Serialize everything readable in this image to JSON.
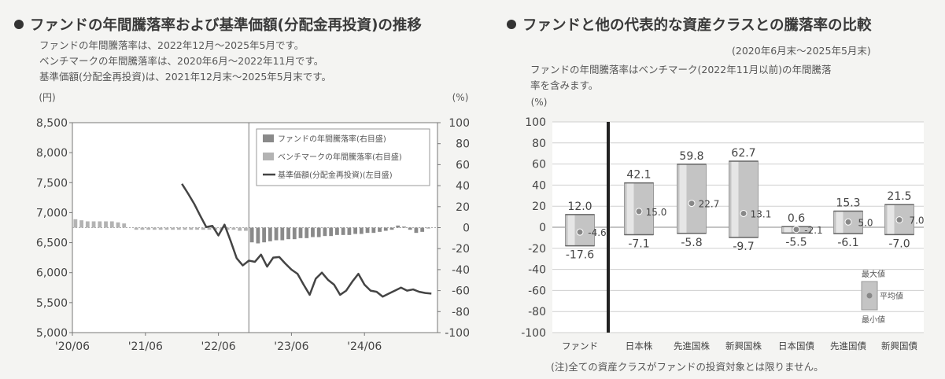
{
  "left": {
    "title": "ファンドの年間騰落率および基準価額(分配金再投資)の推移",
    "notes": [
      "ファンドの年間騰落率は、2022年12月～2025年5月です。",
      "ベンチマークの年間騰落率は、2020年6月～2022年11月です。",
      "基準価額(分配金再投資)は、2021年12月末～2025年5月末です。"
    ],
    "chart_data": {
      "type": "bar+line",
      "left_axis_unit": "(円)",
      "right_axis_unit": "(%)",
      "left_ylim": [
        5000,
        8500
      ],
      "left_ticks": [
        "8,500",
        "8,000",
        "7,500",
        "7,000",
        "6,500",
        "6,000",
        "5,500",
        "5,000"
      ],
      "right_ylim": [
        -100,
        100
      ],
      "right_ticks": [
        "100",
        "80",
        "60",
        "40",
        "20",
        "0",
        "-20",
        "-40",
        "-60",
        "-80",
        "-100"
      ],
      "x_ticks": [
        "'20/06",
        "'21/06",
        "'22/06",
        "'23/06",
        "'24/06"
      ],
      "legend": [
        "ファンドの年間騰落率(右目盛)",
        "ベンチマークの年間騰落率(右目盛)",
        "基準価額(分配金再投資)(左目盛)"
      ],
      "divider_month": 29,
      "benchmark_bar_values": [
        8,
        7,
        6,
        6,
        6,
        6,
        6,
        5,
        4,
        -2,
        -2,
        -2,
        -2,
        -2,
        -2,
        -2,
        -2,
        -2,
        -2,
        -2,
        -2,
        -2,
        -2,
        -2,
        -2,
        -2,
        -2,
        -3,
        -3,
        -4
      ],
      "fund_bar_values": [
        -14,
        -15,
        -14,
        -13,
        -12,
        -12,
        -11,
        -11,
        -10,
        -10,
        -9,
        -9,
        -8,
        -8,
        -7,
        -7,
        -7,
        -6,
        -6,
        -5,
        -5,
        -4,
        -3,
        -2,
        2,
        1,
        -2,
        -5,
        -4,
        0
      ],
      "nav_line": [
        7480,
        7320,
        7150,
        6950,
        6760,
        6780,
        6620,
        6800,
        6530,
        6240,
        6120,
        6200,
        6180,
        6300,
        6100,
        6250,
        6260,
        6150,
        6050,
        5980,
        5800,
        5630,
        5900,
        6000,
        5880,
        5800,
        5630,
        5700,
        5850,
        5980,
        5800,
        5700,
        5680,
        5600,
        5650,
        5700,
        5750,
        5700,
        5720,
        5680,
        5660,
        5650
      ]
    }
  },
  "right": {
    "title": "ファンドと他の代表的な資産クラスとの騰落率の比較",
    "period": "(2020年6月末～2025年5月末)",
    "notes": [
      "ファンドの年間騰落率はベンチマーク(2022年11月以前)の年間騰落",
      "率を含みます。"
    ],
    "footnote": "(注)全ての資産クラスがファンドの投資対象とは限りません。",
    "legend": {
      "max": "最大値",
      "avg": "平均値",
      "min": "最小値"
    },
    "chart_data": {
      "type": "range-bar",
      "unit": "(%)",
      "ylim": [
        -100,
        100
      ],
      "y_ticks": [
        "100",
        "80",
        "60",
        "40",
        "20",
        "0",
        "-20",
        "-40",
        "-60",
        "-80",
        "-100"
      ],
      "categories": [
        "ファンド",
        "日本株",
        "先進国株",
        "新興国株",
        "日本国債",
        "先進国債",
        "新興国債"
      ],
      "max": [
        12.0,
        42.1,
        59.8,
        62.7,
        0.6,
        15.3,
        21.5
      ],
      "avg": [
        -4.6,
        15.0,
        22.7,
        13.1,
        -2.1,
        5.0,
        7.0
      ],
      "min": [
        -17.6,
        -7.1,
        -5.8,
        -9.7,
        -5.5,
        -6.1,
        -7.0
      ],
      "max_labels": [
        "12.0",
        "42.1",
        "59.8",
        "62.7",
        "0.6",
        "15.3",
        "21.5"
      ],
      "avg_labels": [
        "-4.6",
        "15.0",
        "22.7",
        "13.1",
        "-2.1",
        "5.0",
        "7.0"
      ],
      "min_labels": [
        "-17.6",
        "-7.1",
        "-5.8",
        "-9.7",
        "-5.5",
        "-6.1",
        "-7.0"
      ]
    }
  }
}
